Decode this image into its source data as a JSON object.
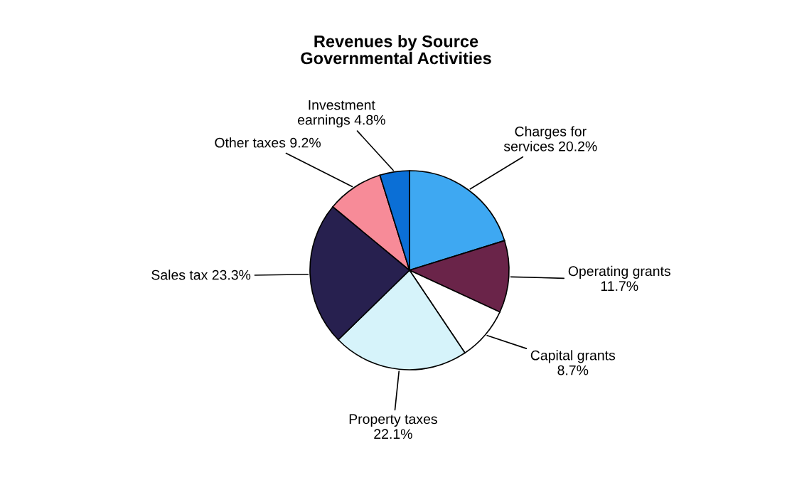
{
  "chart_data": {
    "type": "pie",
    "title": "Revenues by Source\nGovernmental Activities",
    "categories": [
      "Charges for\nservices 20.2%",
      "Operating grants\n11.7%",
      "Capital grants\n8.7%",
      "Property taxes\n22.1%",
      "Sales tax 23.3%",
      "Other taxes 9.2%",
      "Investment\nearnings 4.8%"
    ],
    "values": [
      20.2,
      11.7,
      8.7,
      22.1,
      23.3,
      9.2,
      4.8
    ],
    "colors": [
      "#3ea8f2",
      "#6a2449",
      "#ffffff",
      "#d6f3fa",
      "#27204f",
      "#f78b98",
      "#0b6fd6"
    ],
    "legend": false
  }
}
